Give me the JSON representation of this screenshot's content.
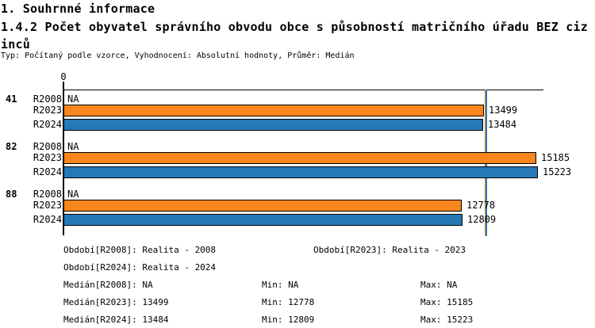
{
  "header": {
    "title_line1": "1. Souhrnné informace",
    "title_line2": "1.4.2 Počet obyvatel správního obvodu obce s působností matričního úřadu BEZ cizinců",
    "meta": "Typ: Počítaný podle vzorce, Vyhodnocení: Absolutní hodnoty, Průměr: Medián"
  },
  "chart_data": {
    "type": "bar",
    "orientation": "horizontal",
    "title": "1.4.2 Počet obyvatel správního obvodu obce s působností matričního úřadu BEZ cizinců",
    "categories": [
      "41",
      "82",
      "88"
    ],
    "series": [
      {
        "name": "R2008",
        "values": [
          null,
          null,
          null
        ],
        "display": [
          "NA",
          "NA",
          "NA"
        ],
        "color": null
      },
      {
        "name": "R2023",
        "values": [
          13499,
          15185,
          12778
        ],
        "color": "#F8861C"
      },
      {
        "name": "R2024",
        "values": [
          13484,
          15223,
          12809
        ],
        "color": "#2579B5"
      }
    ],
    "xlim": [
      0,
      15410
    ],
    "zero_tick_label": "0",
    "grid": false,
    "legend_position": "none",
    "median_lines": [
      {
        "series": "R2023",
        "value": 13499,
        "color": "#F8861C"
      },
      {
        "series": "R2024",
        "value": 13484,
        "color": "#2579B5"
      }
    ],
    "colors": {
      "bar_border": "#000000",
      "axis": "#000000"
    }
  },
  "footer": {
    "periods": [
      "Období[R2008]: Realita - 2008",
      "Období[R2023]: Realita - 2023",
      "Období[R2024]: Realita - 2024"
    ],
    "stats": [
      {
        "median": "Medián[R2008]: NA",
        "min": "Min: NA",
        "max": "Max: NA"
      },
      {
        "median": "Medián[R2023]: 13499",
        "min": "Min: 12778",
        "max": "Max: 15185"
      },
      {
        "median": "Medián[R2024]: 13484",
        "min": "Min: 12809",
        "max": "Max: 15223"
      }
    ]
  }
}
